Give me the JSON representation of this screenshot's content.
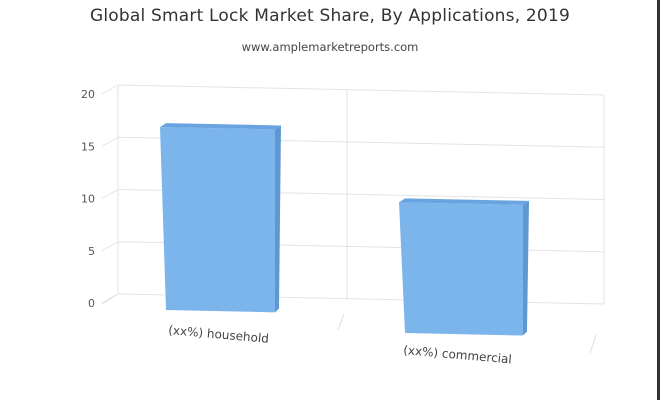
{
  "header": {
    "title": "Global Smart Lock Market Share, By Applications, 2019",
    "source": "www.amplemarketreports.com"
  },
  "chart_data": {
    "type": "bar",
    "categories": [
      "(xx%) household",
      "(xx%) commercial"
    ],
    "values": [
      17.5,
      12.5
    ],
    "title": "Global Smart Lock Market Share, By Applications, 2019",
    "xlabel": "",
    "ylabel": "",
    "ylim": [
      0,
      20
    ],
    "yticks": [
      0,
      5,
      10,
      15,
      20
    ],
    "grid": true,
    "style": "3d",
    "colors": {
      "bar_front": "#7cb5ec",
      "bar_side": "#5e97d1",
      "bar_top": "#6aa4e0"
    }
  }
}
